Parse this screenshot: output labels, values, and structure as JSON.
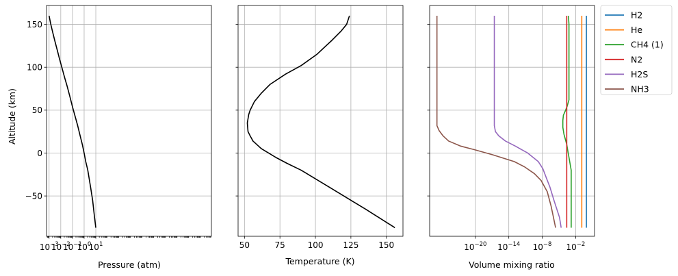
{
  "chart_data": [
    {
      "type": "line",
      "xscale": "log",
      "xlabel": "Pressure (atm)",
      "ylabel": "Altitude (km)",
      "xlim_exp": [
        -3.22,
        10.9
      ],
      "xticks": [
        0.001,
        0.01,
        0.1,
        1,
        10
      ],
      "xtick_labels": [
        {
          "base": "10",
          "exp": "−3"
        },
        {
          "base": "10",
          "exp": "−2"
        },
        {
          "base": "10",
          "exp": "−1"
        },
        {
          "base": "10",
          "exp": "0"
        },
        {
          "base": "10",
          "exp": "1"
        }
      ],
      "ylim": [
        -97,
        172
      ],
      "yticks": [
        -50,
        0,
        50,
        100,
        150
      ],
      "ytick_labels": [
        "−50",
        "0",
        "50",
        "100",
        "150"
      ],
      "grid": true,
      "series": [
        {
          "color": "#000000",
          "x": [
            0.001,
            0.0014,
            0.0021,
            0.0032,
            0.005,
            0.0077,
            0.0123,
            0.0214,
            0.035,
            0.06,
            0.1,
            0.16,
            0.28,
            0.46,
            0.7,
            1.0,
            1.38,
            2.06,
            3.6,
            5.35,
            7.8,
            10.0
          ],
          "y": [
            160,
            150,
            140,
            130,
            120,
            110,
            100,
            88,
            78,
            66,
            54,
            44,
            32,
            20,
            10,
            0,
            -10,
            -20,
            -40,
            -55,
            -75,
            -87
          ]
        }
      ]
    },
    {
      "type": "line",
      "xlabel": "Temperature (K)",
      "xlim": [
        45.5,
        161.7
      ],
      "xticks": [
        50,
        75,
        100,
        125,
        150
      ],
      "xtick_labels": [
        "50",
        "75",
        "100",
        "125",
        "150"
      ],
      "ylim": [
        -97,
        172
      ],
      "yticks": [
        -50,
        0,
        50,
        100,
        150
      ],
      "grid": true,
      "series": [
        {
          "color": "#000000",
          "x": [
            124,
            122,
            118,
            112,
            101,
            90,
            79,
            68,
            62,
            57,
            54,
            53,
            52,
            52.5,
            54,
            56,
            62,
            72,
            80,
            90,
            100,
            110,
            125,
            135,
            156
          ],
          "y": [
            160,
            150,
            142,
            132,
            115,
            102,
            92,
            80,
            70,
            60,
            50,
            45,
            35,
            25,
            20,
            14,
            5,
            -5,
            -12,
            -20,
            -30,
            -40,
            -55,
            -65,
            -87
          ]
        }
      ]
    },
    {
      "type": "line",
      "xscale": "log",
      "xlabel": "Volume mixing ratio",
      "xlim_exp": [
        -28.21,
        1.39
      ],
      "xticks": [
        1e-20,
        1e-14,
        1e-08,
        0.01
      ],
      "xtick_labels": [
        {
          "base": "10",
          "exp": "−20"
        },
        {
          "base": "10",
          "exp": "−14"
        },
        {
          "base": "10",
          "exp": "−8"
        },
        {
          "base": "10",
          "exp": "−2"
        }
      ],
      "ylim": [
        -97,
        172
      ],
      "yticks": [
        -50,
        0,
        50,
        100,
        150
      ],
      "grid": true,
      "legend": "outside-upper-right",
      "series": [
        {
          "name": "H2",
          "color": "#1f77b4",
          "x_exp": [
            -0.07,
            -0.07
          ],
          "y": [
            160,
            -87
          ]
        },
        {
          "name": "He",
          "color": "#ff7f0e",
          "x_exp": [
            -0.9,
            -0.9
          ],
          "y": [
            160,
            -87
          ]
        },
        {
          "name": "CH4 (1)",
          "color": "#2ca02c",
          "x_exp": [
            -3.3,
            -3.2,
            -3.2,
            -3.5,
            -3.8,
            -4.2,
            -4.3,
            -4.3,
            -4.1,
            -3.6,
            -2.8,
            -2.8,
            -2.8
          ],
          "y": [
            160,
            150,
            62,
            55,
            50,
            44,
            38,
            30,
            22,
            10,
            -20,
            -40,
            -87
          ]
        },
        {
          "name": "N2",
          "color": "#d62728",
          "x_exp": [
            -3.6,
            -3.6
          ],
          "y": [
            160,
            -87
          ]
        },
        {
          "name": "H2S",
          "color": "#9467bd",
          "x_exp": [
            -16.6,
            -16.6,
            -16.6,
            -16.4,
            -15.8,
            -14.6,
            -12.8,
            -10.6,
            -8.7,
            -7.9,
            -7.2,
            -6.6,
            -5.9,
            -4.9,
            -4.6
          ],
          "y": [
            160,
            100,
            32,
            25,
            20,
            14,
            8,
            0,
            -10,
            -18,
            -30,
            -40,
            -55,
            -75,
            -87
          ]
        },
        {
          "name": "NH3",
          "color": "#8c564b",
          "x_exp": [
            -26.9,
            -26.9,
            -26.9,
            -26.5,
            -25.8,
            -24.8,
            -22.6,
            -20.2,
            -16.9,
            -13.0,
            -11.2,
            -9.4,
            -8.2,
            -7.1,
            -6.4,
            -5.6
          ],
          "y": [
            160,
            100,
            32,
            26,
            20,
            14,
            8,
            4,
            -2,
            -10,
            -16,
            -24,
            -32,
            -45,
            -62,
            -87
          ]
        }
      ]
    }
  ]
}
